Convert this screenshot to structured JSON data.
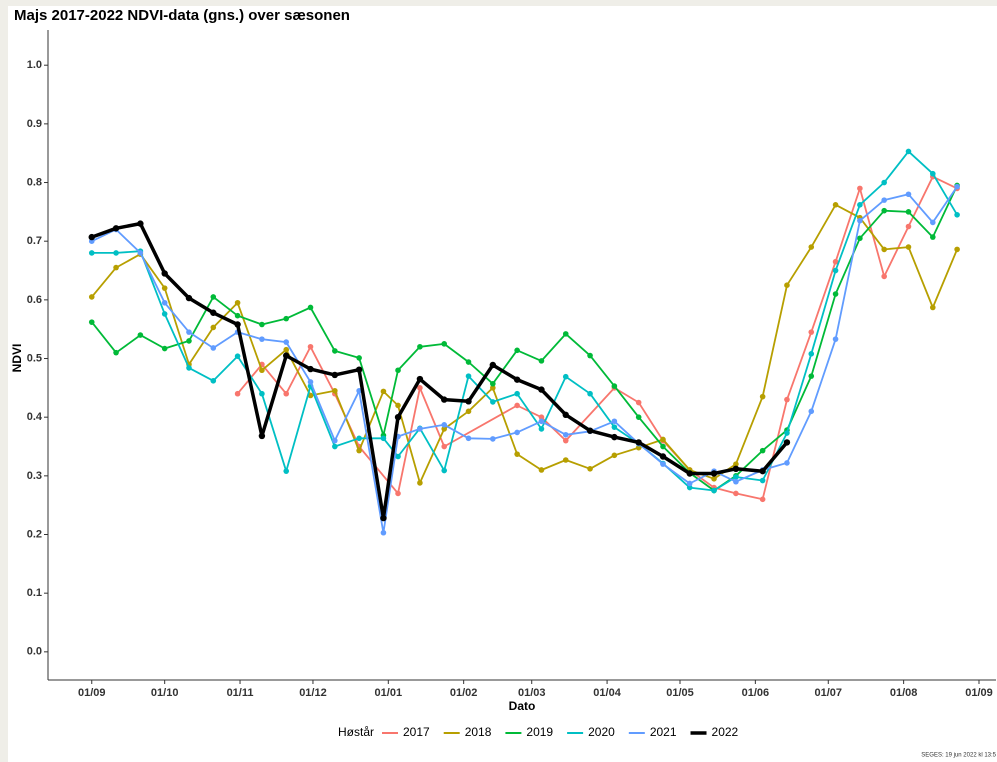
{
  "chart_data": {
    "type": "line",
    "title": "Majs 2017-2022 NDVI-data (gns.) over sæsonen",
    "x_label": "Dato",
    "y_label": "NDVI",
    "legend_title": "Høstår",
    "legend_position": "bottom",
    "footer": "SEGES:  19 jun 2022 kl 13:5",
    "xlim": [
      -18,
      372
    ],
    "ylim": [
      -0.048,
      1.06
    ],
    "xticks": [
      {
        "value": 0,
        "label": "01/09"
      },
      {
        "value": 30,
        "label": "01/10"
      },
      {
        "value": 61,
        "label": "01/11"
      },
      {
        "value": 91,
        "label": "01/12"
      },
      {
        "value": 122,
        "label": "01/01"
      },
      {
        "value": 153,
        "label": "01/02"
      },
      {
        "value": 181,
        "label": "01/03"
      },
      {
        "value": 212,
        "label": "01/04"
      },
      {
        "value": 242,
        "label": "01/05"
      },
      {
        "value": 273,
        "label": "01/06"
      },
      {
        "value": 303,
        "label": "01/07"
      },
      {
        "value": 334,
        "label": "01/08"
      },
      {
        "value": 365,
        "label": "01/09"
      }
    ],
    "yticks": [
      {
        "value": 0,
        "label": "0.0"
      },
      0.1,
      0.2,
      0.3,
      0.4,
      0.5,
      0.6,
      0.7,
      0.8,
      0.9,
      {
        "value": 1,
        "label": "1.0"
      }
    ],
    "series": [
      {
        "name": "2017",
        "color": "#f8766d",
        "x": [
          60,
          70,
          80,
          90,
          100,
          110,
          126,
          135,
          145,
          175,
          185,
          195,
          215,
          225,
          235,
          246,
          256,
          265,
          276,
          286,
          296,
          306,
          316,
          326,
          336,
          346,
          356
        ],
        "values": [
          0.44,
          0.49,
          0.44,
          0.52,
          0.44,
          0.35,
          0.27,
          0.45,
          0.35,
          0.42,
          0.4,
          0.36,
          0.45,
          0.425,
          0.36,
          0.31,
          0.28,
          0.27,
          0.26,
          0.43,
          0.545,
          0.665,
          0.79,
          0.64,
          0.725,
          0.81,
          0.79
        ]
      },
      {
        "name": "2018",
        "color": "#b79f00",
        "x": [
          0,
          10,
          20,
          30,
          40,
          50,
          60,
          70,
          80,
          90,
          100,
          110,
          120,
          126,
          135,
          145,
          155,
          165,
          175,
          185,
          195,
          205,
          215,
          225,
          235,
          246,
          256,
          265,
          276,
          286,
          296,
          306,
          316,
          326,
          336,
          346,
          356
        ],
        "values": [
          0.605,
          0.655,
          0.678,
          0.62,
          0.49,
          0.553,
          0.595,
          0.48,
          0.515,
          0.437,
          0.445,
          0.343,
          0.444,
          0.42,
          0.288,
          0.38,
          0.41,
          0.45,
          0.337,
          0.31,
          0.327,
          0.312,
          0.335,
          0.348,
          0.362,
          0.31,
          0.295,
          0.32,
          0.435,
          0.625,
          0.69,
          0.762,
          0.74,
          0.686,
          0.69,
          0.587,
          0.686
        ]
      },
      {
        "name": "2019",
        "color": "#00ba38",
        "x": [
          0,
          10,
          20,
          30,
          40,
          50,
          60,
          70,
          80,
          90,
          100,
          110,
          120,
          126,
          135,
          145,
          155,
          165,
          175,
          185,
          195,
          205,
          215,
          225,
          235,
          246,
          256,
          265,
          276,
          286,
          296,
          306,
          316,
          326,
          336,
          346,
          356
        ],
        "values": [
          0.562,
          0.51,
          0.54,
          0.517,
          0.53,
          0.605,
          0.573,
          0.558,
          0.568,
          0.587,
          0.513,
          0.501,
          0.369,
          0.48,
          0.52,
          0.525,
          0.494,
          0.457,
          0.514,
          0.496,
          0.542,
          0.505,
          0.453,
          0.4,
          0.35,
          0.305,
          0.275,
          0.3,
          0.343,
          0.378,
          0.47,
          0.61,
          0.705,
          0.752,
          0.75,
          0.707,
          0.795
        ]
      },
      {
        "name": "2020",
        "color": "#00bfc4",
        "x": [
          0,
          10,
          20,
          30,
          40,
          50,
          60,
          70,
          80,
          90,
          100,
          110,
          120,
          126,
          135,
          145,
          155,
          165,
          175,
          185,
          195,
          205,
          215,
          225,
          235,
          246,
          256,
          265,
          276,
          286,
          296,
          306,
          316,
          326,
          336,
          346,
          356
        ],
        "values": [
          0.68,
          0.68,
          0.683,
          0.576,
          0.484,
          0.462,
          0.504,
          0.44,
          0.308,
          0.453,
          0.35,
          0.364,
          0.364,
          0.333,
          0.381,
          0.309,
          0.47,
          0.426,
          0.44,
          0.38,
          0.469,
          0.44,
          0.383,
          0.355,
          0.321,
          0.28,
          0.275,
          0.298,
          0.292,
          0.373,
          0.508,
          0.65,
          0.762,
          0.8,
          0.853,
          0.815,
          0.745
        ]
      },
      {
        "name": "2021",
        "color": "#619cff",
        "x": [
          0,
          10,
          20,
          30,
          40,
          50,
          60,
          70,
          80,
          90,
          100,
          110,
          120,
          126,
          135,
          145,
          155,
          165,
          175,
          185,
          195,
          205,
          215,
          225,
          235,
          246,
          256,
          265,
          276,
          286,
          296,
          306,
          316,
          326,
          336,
          346,
          356
        ],
        "values": [
          0.7,
          0.72,
          0.68,
          0.595,
          0.545,
          0.518,
          0.545,
          0.533,
          0.528,
          0.46,
          0.36,
          0.445,
          0.203,
          0.367,
          0.38,
          0.387,
          0.364,
          0.363,
          0.374,
          0.393,
          0.37,
          0.376,
          0.393,
          0.355,
          0.32,
          0.287,
          0.308,
          0.29,
          0.31,
          0.322,
          0.41,
          0.533,
          0.735,
          0.77,
          0.78,
          0.732,
          0.793
        ]
      },
      {
        "name": "2022",
        "color": "#000000",
        "x": [
          0,
          10,
          20,
          30,
          40,
          50,
          60,
          70,
          80,
          90,
          100,
          110,
          120,
          126,
          135,
          145,
          155,
          165,
          175,
          185,
          195,
          205,
          215,
          225,
          235,
          246,
          256,
          265,
          276,
          286
        ],
        "values": [
          0.707,
          0.722,
          0.73,
          0.645,
          0.603,
          0.578,
          0.558,
          0.368,
          0.505,
          0.482,
          0.472,
          0.481,
          0.228,
          0.4,
          0.465,
          0.43,
          0.427,
          0.489,
          0.464,
          0.447,
          0.404,
          0.377,
          0.366,
          0.357,
          0.333,
          0.304,
          0.304,
          0.312,
          0.308,
          0.357
        ]
      }
    ]
  }
}
